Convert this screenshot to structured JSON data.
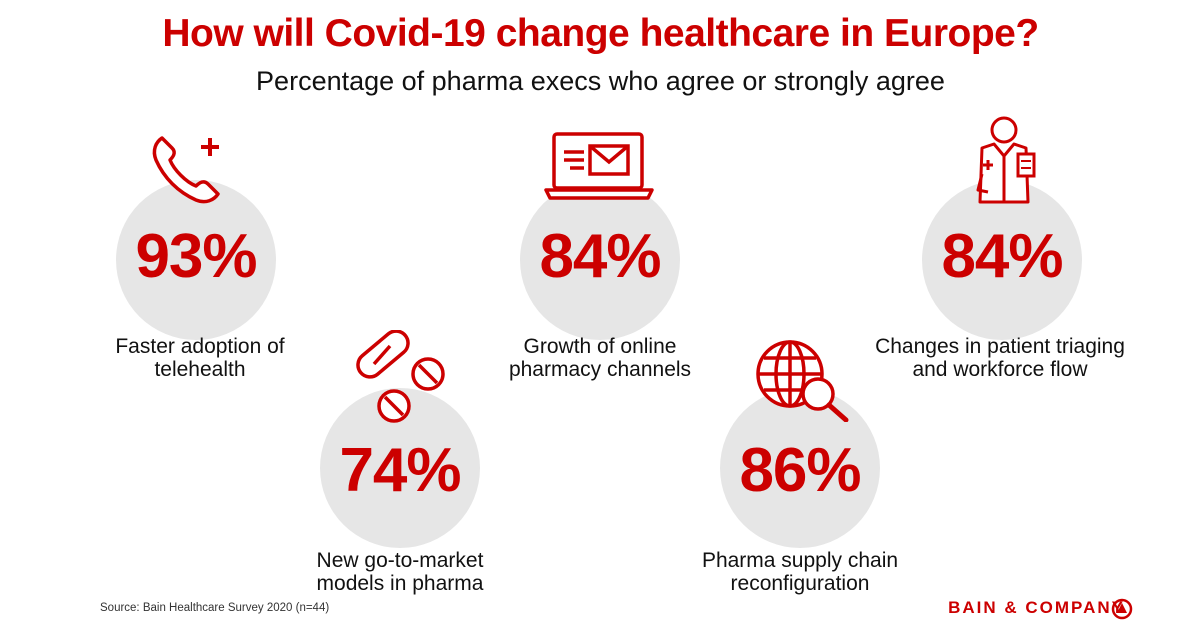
{
  "title": "How will Covid-19 change healthcare in Europe?",
  "subtitle": "Percentage of pharma execs who agree or strongly agree",
  "colors": {
    "accent": "#cc0000",
    "circle": "#e6e6e6",
    "text": "#111111"
  },
  "chart_data": {
    "type": "infographic",
    "unit": "%",
    "items": [
      {
        "value": 93,
        "display": "93%",
        "label_lines": [
          "Faster adoption of",
          "telehealth"
        ],
        "icon": "phone-plus-icon"
      },
      {
        "value": 74,
        "display": "74%",
        "label_lines": [
          "New go-to-market",
          "models in pharma"
        ],
        "icon": "pills-icon"
      },
      {
        "value": 84,
        "display": "84%",
        "label_lines": [
          "Growth of online",
          "pharmacy channels"
        ],
        "icon": "laptop-mail-icon"
      },
      {
        "value": 86,
        "display": "86%",
        "label_lines": [
          "Pharma supply chain",
          "reconfiguration"
        ],
        "icon": "globe-search-icon"
      },
      {
        "value": 84,
        "display": "84%",
        "label_lines": [
          "Changes in patient triaging",
          "and workforce flow"
        ],
        "icon": "doctor-icon"
      }
    ]
  },
  "footer": {
    "source": "Source:  Bain Healthcare Survey 2020 (n=44)",
    "brand": "BAIN & COMPANY"
  }
}
